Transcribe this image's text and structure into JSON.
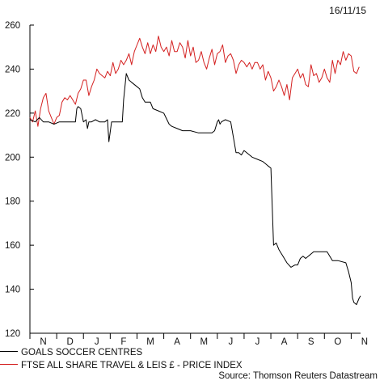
{
  "date_label": "16/11/15",
  "source": "Source: Thomson Reuters Datastream",
  "colors": {
    "series_1": "#000000",
    "series_2": "#d42020",
    "axis": "#000000"
  },
  "chart_data": {
    "type": "line",
    "title": "",
    "xlabel": "",
    "ylabel": "",
    "ylim": [
      120,
      260
    ],
    "yticks": [
      120,
      140,
      160,
      180,
      200,
      220,
      240,
      260
    ],
    "xlim": [
      0,
      12.35
    ],
    "months": [
      "N",
      "D",
      "J",
      "F",
      "M",
      "A",
      "M",
      "J",
      "J",
      "A",
      "S",
      "O",
      "N"
    ],
    "grid": false,
    "legend_position": "bottom",
    "series": [
      {
        "name": "GOALS SOCCER CENTRES",
        "color": "#000000",
        "x": [
          0,
          0.2,
          0.35,
          0.5,
          0.7,
          0.9,
          1.1,
          1.3,
          1.5,
          1.7,
          1.75,
          1.8,
          1.9,
          2.0,
          2.1,
          2.15,
          2.2,
          2.3,
          2.45,
          2.6,
          2.8,
          2.9,
          2.95,
          3.05,
          3.15,
          3.3,
          3.45,
          3.5,
          3.6,
          3.7,
          3.8,
          4.0,
          4.1,
          4.2,
          4.3,
          4.5,
          4.6,
          4.8,
          5.0,
          5.2,
          5.3,
          5.5,
          5.7,
          6.0,
          6.3,
          6.6,
          6.75,
          6.8,
          6.9,
          7.0,
          7.05,
          7.1,
          7.15,
          7.3,
          7.5,
          7.7,
          7.8,
          7.9,
          8.0,
          8.3,
          8.5,
          8.7,
          8.8,
          8.9,
          9.0,
          9.1,
          9.2,
          9.3,
          9.45,
          9.6,
          9.75,
          9.9,
          10.0,
          10.1,
          10.2,
          10.3,
          10.5,
          10.6,
          10.7,
          10.8,
          10.9,
          11.0,
          11.1,
          11.2,
          11.3,
          11.5,
          11.8,
          11.9,
          12.0,
          12.05,
          12.1,
          12.2,
          12.3,
          12.35
        ],
        "y": [
          217,
          216,
          218,
          216,
          216,
          215,
          216,
          216,
          216,
          216,
          222,
          223,
          222,
          216,
          217,
          213,
          216,
          216,
          217,
          216,
          216,
          217,
          207,
          216,
          216,
          216,
          216,
          226,
          238,
          235,
          234,
          232,
          231,
          227,
          225,
          225,
          222,
          221,
          220,
          215,
          214,
          213,
          212,
          212,
          211,
          211,
          211,
          211,
          212,
          216,
          217,
          215,
          216,
          217,
          216,
          202,
          202,
          201,
          203,
          200,
          199,
          198,
          197,
          196,
          195,
          160,
          161,
          158,
          155,
          152,
          150,
          151,
          151,
          154,
          155,
          154,
          156,
          157,
          157,
          157,
          157,
          157,
          157,
          155,
          153,
          153,
          152,
          148,
          143,
          136,
          134,
          133,
          136,
          137
        ]
      },
      {
        "name": "FTSE ALL SHARE TRAVEL & LEIS £ - PRICE INDEX",
        "color": "#d42020",
        "x": [
          0,
          0.1,
          0.2,
          0.3,
          0.4,
          0.5,
          0.6,
          0.7,
          0.8,
          0.9,
          1.0,
          1.1,
          1.2,
          1.3,
          1.4,
          1.5,
          1.6,
          1.7,
          1.8,
          1.9,
          2.0,
          2.1,
          2.2,
          2.3,
          2.4,
          2.5,
          2.6,
          2.7,
          2.8,
          2.9,
          3.0,
          3.1,
          3.2,
          3.3,
          3.4,
          3.5,
          3.6,
          3.7,
          3.8,
          3.9,
          4.0,
          4.1,
          4.2,
          4.3,
          4.4,
          4.5,
          4.6,
          4.7,
          4.8,
          4.9,
          5.0,
          5.1,
          5.2,
          5.3,
          5.4,
          5.5,
          5.6,
          5.7,
          5.8,
          5.9,
          6.0,
          6.1,
          6.2,
          6.3,
          6.4,
          6.5,
          6.6,
          6.7,
          6.8,
          6.9,
          7.0,
          7.1,
          7.2,
          7.3,
          7.4,
          7.5,
          7.6,
          7.7,
          7.8,
          7.9,
          8.0,
          8.1,
          8.2,
          8.3,
          8.4,
          8.5,
          8.6,
          8.7,
          8.8,
          8.9,
          9.0,
          9.1,
          9.2,
          9.3,
          9.4,
          9.5,
          9.6,
          9.7,
          9.8,
          9.9,
          10.0,
          10.1,
          10.2,
          10.3,
          10.4,
          10.5,
          10.6,
          10.7,
          10.8,
          10.9,
          11.0,
          11.1,
          11.2,
          11.3,
          11.4,
          11.5,
          11.6,
          11.7,
          11.8,
          11.9,
          12.0,
          12.1,
          12.2,
          12.3
        ],
        "y": [
          218,
          216,
          221,
          214,
          222,
          227,
          229,
          221,
          218,
          215,
          218,
          219,
          225,
          227,
          226,
          228,
          226,
          224,
          229,
          231,
          235,
          235,
          228,
          232,
          235,
          240,
          238,
          237,
          236,
          239,
          237,
          243,
          238,
          240,
          244,
          242,
          244,
          247,
          242,
          248,
          251,
          254,
          250,
          247,
          252,
          247,
          251,
          248,
          255,
          250,
          248,
          250,
          246,
          253,
          248,
          248,
          252,
          250,
          245,
          253,
          246,
          250,
          243,
          244,
          248,
          243,
          240,
          245,
          249,
          242,
          247,
          248,
          251,
          243,
          246,
          247,
          244,
          238,
          242,
          244,
          243,
          241,
          243,
          240,
          243,
          243,
          240,
          242,
          235,
          239,
          236,
          230,
          232,
          235,
          232,
          228,
          233,
          226,
          236,
          238,
          240,
          236,
          238,
          233,
          232,
          242,
          237,
          238,
          234,
          236,
          240,
          236,
          234,
          244,
          238,
          244,
          242,
          248,
          244,
          247,
          246,
          239,
          238,
          241
        ]
      }
    ]
  }
}
